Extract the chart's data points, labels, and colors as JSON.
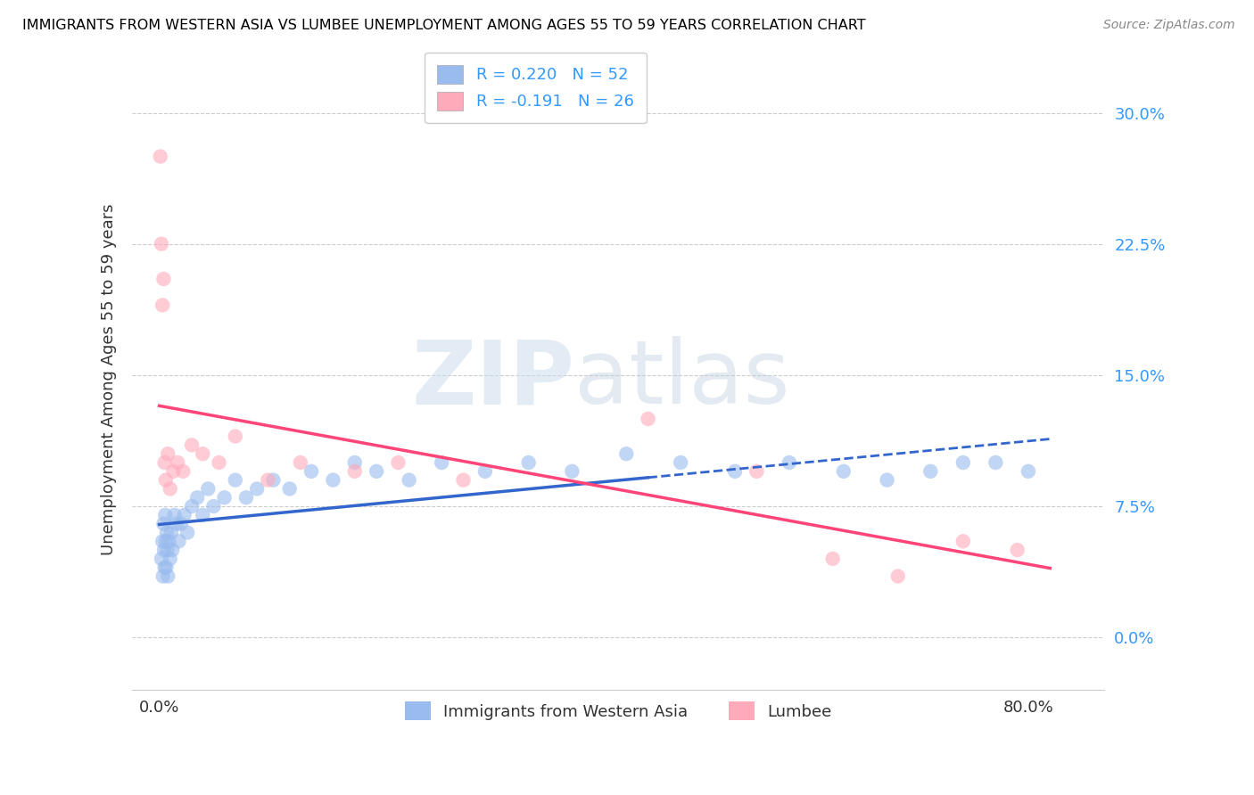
{
  "title": "IMMIGRANTS FROM WESTERN ASIA VS LUMBEE UNEMPLOYMENT AMONG AGES 55 TO 59 YEARS CORRELATION CHART",
  "source": "Source: ZipAtlas.com",
  "ylabel": "Unemployment Among Ages 55 to 59 years",
  "legend1_label": "Immigrants from Western Asia",
  "legend2_label": "Lumbee",
  "r1": 0.22,
  "n1": 52,
  "r2": -0.191,
  "n2": 26,
  "color_blue": "#99BBEE",
  "color_pink": "#FFAABB",
  "color_blue_line": "#3366CC",
  "color_pink_line": "#FF4477",
  "color_blue_text": "#3399FF",
  "ylim_max": 32.5,
  "ylim_min": -3.0,
  "xlim_max": 87.0,
  "xlim_min": -2.5,
  "yticks": [
    0.0,
    7.5,
    15.0,
    22.5,
    30.0
  ],
  "blue_scatter_x": [
    0.2,
    0.3,
    0.35,
    0.4,
    0.45,
    0.5,
    0.55,
    0.6,
    0.65,
    0.7,
    0.75,
    0.8,
    0.9,
    1.0,
    1.1,
    1.2,
    1.4,
    1.6,
    1.8,
    2.0,
    2.3,
    2.6,
    3.0,
    3.5,
    4.0,
    4.5,
    5.0,
    6.0,
    7.0,
    8.0,
    9.0,
    10.5,
    12.0,
    14.0,
    16.0,
    18.0,
    20.0,
    23.0,
    26.0,
    30.0,
    34.0,
    38.0,
    43.0,
    48.0,
    53.0,
    58.0,
    63.0,
    67.0,
    71.0,
    74.0,
    77.0,
    80.0
  ],
  "blue_scatter_y": [
    4.5,
    5.5,
    3.5,
    6.5,
    5.0,
    4.0,
    7.0,
    5.5,
    4.0,
    6.0,
    5.0,
    3.5,
    5.5,
    4.5,
    6.0,
    5.0,
    7.0,
    6.5,
    5.5,
    6.5,
    7.0,
    6.0,
    7.5,
    8.0,
    7.0,
    8.5,
    7.5,
    8.0,
    9.0,
    8.0,
    8.5,
    9.0,
    8.5,
    9.5,
    9.0,
    10.0,
    9.5,
    9.0,
    10.0,
    9.5,
    10.0,
    9.5,
    10.5,
    10.0,
    9.5,
    10.0,
    9.5,
    9.0,
    9.5,
    10.0,
    10.0,
    9.5
  ],
  "pink_scatter_x": [
    0.1,
    0.2,
    0.3,
    0.4,
    0.5,
    0.6,
    0.8,
    1.0,
    1.3,
    1.7,
    2.2,
    3.0,
    4.0,
    5.5,
    7.0,
    10.0,
    13.0,
    18.0,
    22.0,
    28.0,
    45.0,
    55.0,
    62.0,
    68.0,
    74.0,
    79.0
  ],
  "pink_scatter_y": [
    27.5,
    22.5,
    19.0,
    20.5,
    10.0,
    9.0,
    10.5,
    8.5,
    9.5,
    10.0,
    9.5,
    11.0,
    10.5,
    10.0,
    11.5,
    9.0,
    10.0,
    9.5,
    10.0,
    9.0,
    12.5,
    9.5,
    4.5,
    3.5,
    5.5,
    5.0
  ],
  "blue_line_solid_x_end": 45.0,
  "blue_line_start_y": 6.0,
  "blue_line_end_y": 13.5,
  "pink_line_start_y": 11.0,
  "pink_line_end_y": 5.0
}
